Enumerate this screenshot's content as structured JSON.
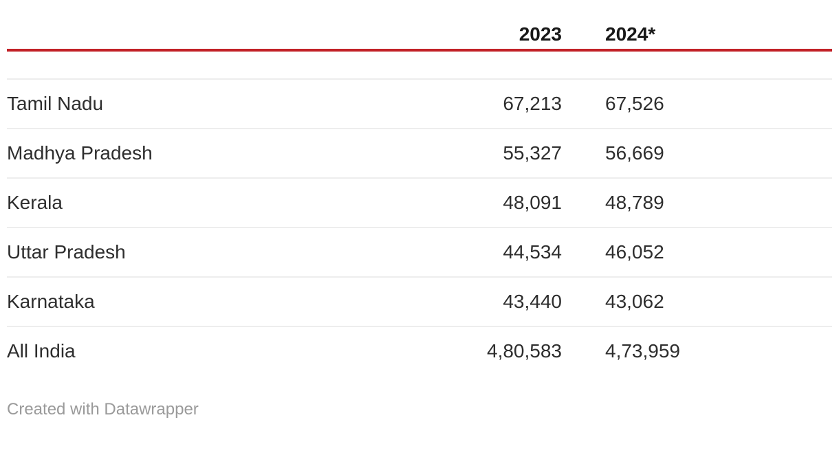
{
  "chart_data": {
    "type": "table",
    "columns": [
      "",
      "2023",
      "2024*"
    ],
    "rows": [
      [
        "Tamil Nadu",
        "67,213",
        "67,526"
      ],
      [
        "Madhya Pradesh",
        "55,327",
        "56,669"
      ],
      [
        "Kerala",
        "48,091",
        "48,789"
      ],
      [
        "Uttar Pradesh",
        "44,534",
        "46,052"
      ],
      [
        "Karnataka",
        "43,440",
        "43,062"
      ],
      [
        "All India",
        "4,80,583",
        "4,73,959"
      ]
    ],
    "series": [
      {
        "name": "2023",
        "values": [
          67213,
          55327,
          48091,
          44534,
          43440,
          480583
        ]
      },
      {
        "name": "2024*",
        "values": [
          67526,
          56669,
          48789,
          46052,
          43062,
          473959
        ]
      }
    ],
    "title": "",
    "legend_position": "none",
    "grid": "horizontal-separators"
  },
  "footer": {
    "credit": "Created with Datawrapper"
  },
  "colors": {
    "accent_rule": "#c22127",
    "separator": "#ededed",
    "text_body": "#2e2e2e",
    "text_header": "#181818",
    "text_footer": "#9a9a9a"
  }
}
